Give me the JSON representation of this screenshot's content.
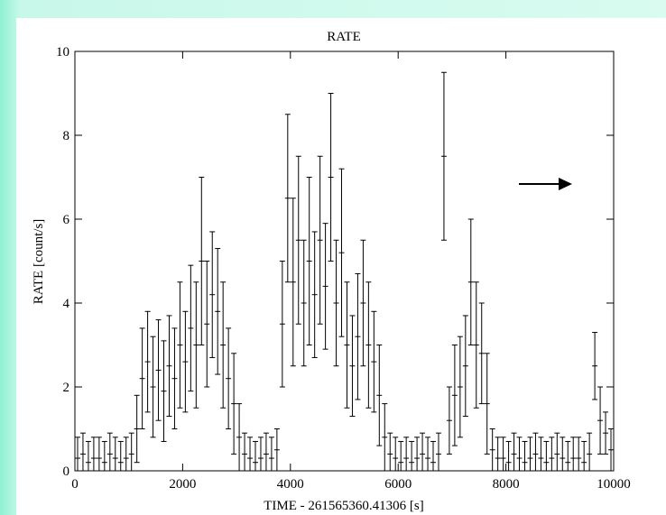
{
  "chart_data": {
    "type": "errorbar",
    "title": "RATE",
    "xlabel": "TIME - 261565360.41306 [s]",
    "ylabel": "RATE [count/s]",
    "xlim": [
      0,
      10000
    ],
    "xticks": [
      0,
      2000,
      4000,
      6000,
      8000,
      10000
    ],
    "ylim": [
      0,
      10
    ],
    "yticks": [
      0,
      2,
      4,
      6,
      8,
      10
    ],
    "color": "#000000",
    "x": [
      50,
      150,
      250,
      350,
      450,
      550,
      650,
      750,
      850,
      950,
      1050,
      1150,
      1250,
      1350,
      1450,
      1550,
      1650,
      1750,
      1850,
      1950,
      2050,
      2150,
      2250,
      2350,
      2450,
      2550,
      2650,
      2750,
      2850,
      2950,
      3050,
      3150,
      3250,
      3350,
      3450,
      3550,
      3650,
      3750,
      3850,
      3950,
      4050,
      4150,
      4250,
      4350,
      4450,
      4550,
      4650,
      4750,
      4850,
      4950,
      5050,
      5150,
      5250,
      5350,
      5450,
      5550,
      5650,
      5750,
      5850,
      5950,
      6050,
      6150,
      6250,
      6350,
      6450,
      6550,
      6650,
      6750,
      6850,
      6950,
      7050,
      7150,
      7250,
      7350,
      7450,
      7550,
      7650,
      7750,
      7850,
      7950,
      8050,
      8150,
      8250,
      8350,
      8450,
      8550,
      8650,
      8750,
      8850,
      8950,
      9050,
      9150,
      9250,
      9350,
      9450,
      9550,
      9650,
      9750,
      9850,
      9950
    ],
    "values": [
      0.3,
      0.4,
      0.2,
      0.3,
      0.3,
      0.2,
      0.4,
      0.3,
      0.2,
      0.3,
      0.4,
      1.0,
      2.2,
      2.6,
      2.0,
      2.4,
      1.9,
      2.5,
      2.2,
      3.0,
      2.6,
      3.4,
      3.0,
      5.0,
      3.5,
      4.2,
      3.8,
      3.0,
      2.2,
      1.6,
      0.8,
      0.4,
      0.3,
      0.2,
      0.3,
      0.4,
      0.3,
      0.5,
      3.5,
      6.5,
      4.5,
      5.5,
      4.0,
      5.0,
      4.2,
      5.5,
      4.4,
      7.0,
      4.0,
      5.2,
      3.0,
      2.5,
      3.2,
      4.0,
      3.0,
      2.6,
      1.8,
      0.8,
      0.4,
      0.3,
      0.2,
      0.3,
      0.2,
      0.3,
      0.4,
      0.3,
      0.2,
      0.4,
      7.5,
      1.2,
      1.8,
      2.0,
      2.5,
      4.5,
      3.0,
      2.8,
      1.6,
      0.5,
      0.3,
      0.3,
      0.2,
      0.4,
      0.3,
      0.2,
      0.3,
      0.4,
      0.3,
      0.2,
      0.3,
      0.4,
      0.3,
      0.2,
      0.3,
      0.3,
      0.2,
      0.4,
      2.5,
      1.2,
      0.9,
      0.5
    ],
    "errors": [
      0.5,
      0.5,
      0.5,
      0.5,
      0.5,
      0.5,
      0.5,
      0.5,
      0.5,
      0.5,
      0.5,
      0.8,
      1.2,
      1.2,
      1.2,
      1.2,
      1.2,
      1.2,
      1.2,
      1.5,
      1.2,
      1.5,
      1.5,
      2.0,
      1.5,
      1.5,
      1.5,
      1.5,
      1.2,
      1.2,
      0.8,
      0.5,
      0.5,
      0.5,
      0.5,
      0.5,
      0.5,
      0.5,
      1.5,
      2.0,
      2.0,
      2.0,
      1.5,
      2.0,
      1.5,
      2.0,
      1.5,
      2.0,
      1.5,
      2.0,
      1.5,
      1.2,
      1.5,
      1.5,
      1.5,
      1.2,
      1.2,
      0.8,
      0.5,
      0.5,
      0.5,
      0.5,
      0.5,
      0.5,
      0.5,
      0.5,
      0.5,
      0.5,
      2.0,
      0.8,
      1.2,
      1.2,
      1.2,
      1.5,
      1.5,
      1.2,
      1.2,
      0.5,
      0.5,
      0.5,
      0.5,
      0.5,
      0.5,
      0.5,
      0.5,
      0.5,
      0.5,
      0.5,
      0.5,
      0.5,
      0.5,
      0.5,
      0.5,
      0.5,
      0.5,
      0.5,
      0.8,
      0.8,
      0.5,
      0.5
    ]
  }
}
